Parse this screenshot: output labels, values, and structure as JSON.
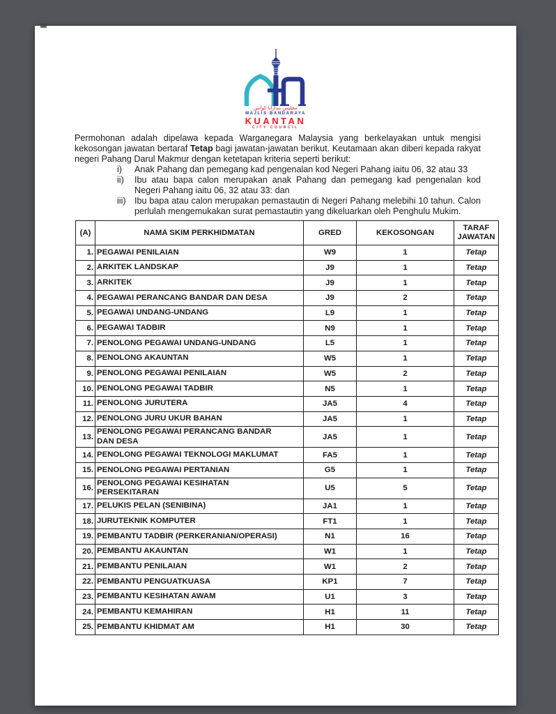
{
  "page": {
    "background_color": "#53575c",
    "paper_color": "#ffffff"
  },
  "logo": {
    "name": "majlis-bandaraya-kuantan-emblem",
    "jawi_text": "مجليس بندارايا كوانتن",
    "org_name_malay": "MAJLIS BANDARAYA",
    "city_name": "KUANTAN",
    "org_name_english": "CITY COUNCIL",
    "colors": {
      "teal": "#31b7c5",
      "blue": "#2b3990",
      "red": "#ed1c24"
    }
  },
  "intro": {
    "part1": "Permohonan adalah dipelawa kepada Warganegara Malaysia yang berkelayakan untuk mengisi kekosongan jawatan bertaraf ",
    "bold": "Tetap",
    "part2": " bagi jawatan-jawatan berikut. Keutamaan akan diberi kepada rakyat negeri Pahang Darul Makmur dengan ketetapan kriteria seperti berikut:"
  },
  "criteria": [
    {
      "marker": "i)",
      "text": "Anak Pahang dan pemegang kad pengenalan kod Negeri Pahang iaitu 06, 32 atau 33"
    },
    {
      "marker": "ii)",
      "text": "Ibu atau bapa calon merupakan anak Pahang dan pemegang kad pengenalan kod Negeri Pahang iaitu 06, 32 atau 33: dan"
    },
    {
      "marker": "iii)",
      "text": "Ibu bapa atau calon merupakan pemastautin di Negeri Pahang melebihi 10 tahun. Calon perlulah mengemukakan surat pemastautin yang dikeluarkan oleh Penghulu Mukim."
    }
  ],
  "table": {
    "headers": [
      "(A)",
      "NAMA SKIM PERKHIDMATAN",
      "GRED",
      "KEKOSONGAN",
      "TARAF JAWATAN"
    ],
    "rows": [
      {
        "no": "1.",
        "nama": "PEGAWAI PENILAIAN",
        "gred": "W9",
        "kekosongan": "1",
        "taraf": "Tetap"
      },
      {
        "no": "2.",
        "nama": "ARKITEK LANDSKAP",
        "gred": "J9",
        "kekosongan": "1",
        "taraf": "Tetap"
      },
      {
        "no": "3.",
        "nama": "ARKITEK",
        "gred": "J9",
        "kekosongan": "1",
        "taraf": "Tetap"
      },
      {
        "no": "4.",
        "nama": "PEGAWAI PERANCANG BANDAR DAN DESA",
        "gred": "J9",
        "kekosongan": "2",
        "taraf": "Tetap"
      },
      {
        "no": "5.",
        "nama": "PEGAWAI UNDANG-UNDANG",
        "gred": "L9",
        "kekosongan": "1",
        "taraf": "Tetap"
      },
      {
        "no": "6.",
        "nama": "PEGAWAI TADBIR",
        "gred": "N9",
        "kekosongan": "1",
        "taraf": "Tetap"
      },
      {
        "no": "7.",
        "nama": "PENOLONG PEGAWAI UNDANG-UNDANG",
        "gred": "L5",
        "kekosongan": "1",
        "taraf": "Tetap"
      },
      {
        "no": "8.",
        "nama": "PENOLONG AKAUNTAN",
        "gred": "W5",
        "kekosongan": "1",
        "taraf": "Tetap"
      },
      {
        "no": "9.",
        "nama": "PENOLONG PEGAWAI PENILAIAN",
        "gred": "W5",
        "kekosongan": "2",
        "taraf": "Tetap"
      },
      {
        "no": "10.",
        "nama": "PENOLONG PEGAWAI TADBIR",
        "gred": "N5",
        "kekosongan": "1",
        "taraf": "Tetap"
      },
      {
        "no": "11.",
        "nama": "PENOLONG JURUTERA",
        "gred": "JA5",
        "kekosongan": "4",
        "taraf": "Tetap"
      },
      {
        "no": "12.",
        "nama": "PENOLONG JURU UKUR BAHAN",
        "gred": "JA5",
        "kekosongan": "1",
        "taraf": "Tetap"
      },
      {
        "no": "13.",
        "nama": "PENOLONG PEGAWAI PERANCANG BANDAR\nDAN DESA",
        "gred": "JA5",
        "kekosongan": "1",
        "taraf": "Tetap"
      },
      {
        "no": "14.",
        "nama": "PENOLONG PEGAWAI TEKNOLOGI MAKLUMAT",
        "gred": "FA5",
        "kekosongan": "1",
        "taraf": "Tetap"
      },
      {
        "no": "15.",
        "nama": "PENOLONG PEGAWAI PERTANIAN",
        "gred": "G5",
        "kekosongan": "1",
        "taraf": "Tetap"
      },
      {
        "no": "16.",
        "nama": "PENOLONG PEGAWAI KESIHATAN\nPERSEKITARAN",
        "gred": "U5",
        "kekosongan": "5",
        "taraf": "Tetap"
      },
      {
        "no": "17.",
        "nama": "PELUKIS PELAN (SENIBINA)",
        "gred": "JA1",
        "kekosongan": "1",
        "taraf": "Tetap"
      },
      {
        "no": "18.",
        "nama": "JURUTEKNIK KOMPUTER",
        "gred": "FT1",
        "kekosongan": "1",
        "taraf": "Tetap"
      },
      {
        "no": "19.",
        "nama": "PEMBANTU TADBIR (PERKERANIAN/OPERASI)",
        "gred": "N1",
        "kekosongan": "16",
        "taraf": "Tetap"
      },
      {
        "no": "20.",
        "nama": "PEMBANTU AKAUNTAN",
        "gred": "W1",
        "kekosongan": "1",
        "taraf": "Tetap"
      },
      {
        "no": "21.",
        "nama": "PEMBANTU PENILAIAN",
        "gred": "W1",
        "kekosongan": "2",
        "taraf": "Tetap"
      },
      {
        "no": "22.",
        "nama": "PEMBANTU PENGUATKUASA",
        "gred": "KP1",
        "kekosongan": "7",
        "taraf": "Tetap"
      },
      {
        "no": "23.",
        "nama": "PEMBANTU KESIHATAN AWAM",
        "gred": "U1",
        "kekosongan": "3",
        "taraf": "Tetap"
      },
      {
        "no": "24.",
        "nama": "PEMBANTU KEMAHIRAN",
        "gred": "H1",
        "kekosongan": "11",
        "taraf": "Tetap"
      },
      {
        "no": "25.",
        "nama": "PEMBANTU KHIDMAT AM",
        "gred": "H1",
        "kekosongan": "30",
        "taraf": "Tetap"
      }
    ]
  }
}
